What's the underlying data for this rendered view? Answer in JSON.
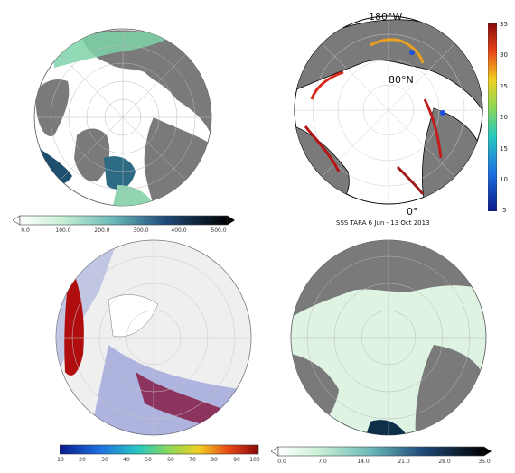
{
  "panel_tr": {
    "caption": "SSS TARA 6 Jun - 13 Oct 2013",
    "label_180w": "180°W",
    "label_80n": "80°N",
    "label_0": "0°",
    "colorbar_ticks": [
      "35",
      "30",
      "25",
      "20",
      "15",
      "10",
      "5"
    ]
  },
  "panel_tl": {
    "colorbar_ticks": [
      "0.0",
      "100.0",
      "200.0",
      "300.0",
      "400.0",
      "500.0"
    ]
  },
  "panel_bl": {
    "colorbar_ticks": [
      "10",
      "20",
      "30",
      "40",
      "50",
      "60",
      "70",
      "80",
      "90",
      "100"
    ]
  },
  "panel_br": {
    "colorbar_ticks": [
      "0.0",
      "7.0",
      "14.0",
      "21.0",
      "28.0",
      "35.0"
    ]
  },
  "colors": {
    "land": "#7a7a7a",
    "ocean": "#ffffff",
    "grid": "#b8b8b8"
  }
}
